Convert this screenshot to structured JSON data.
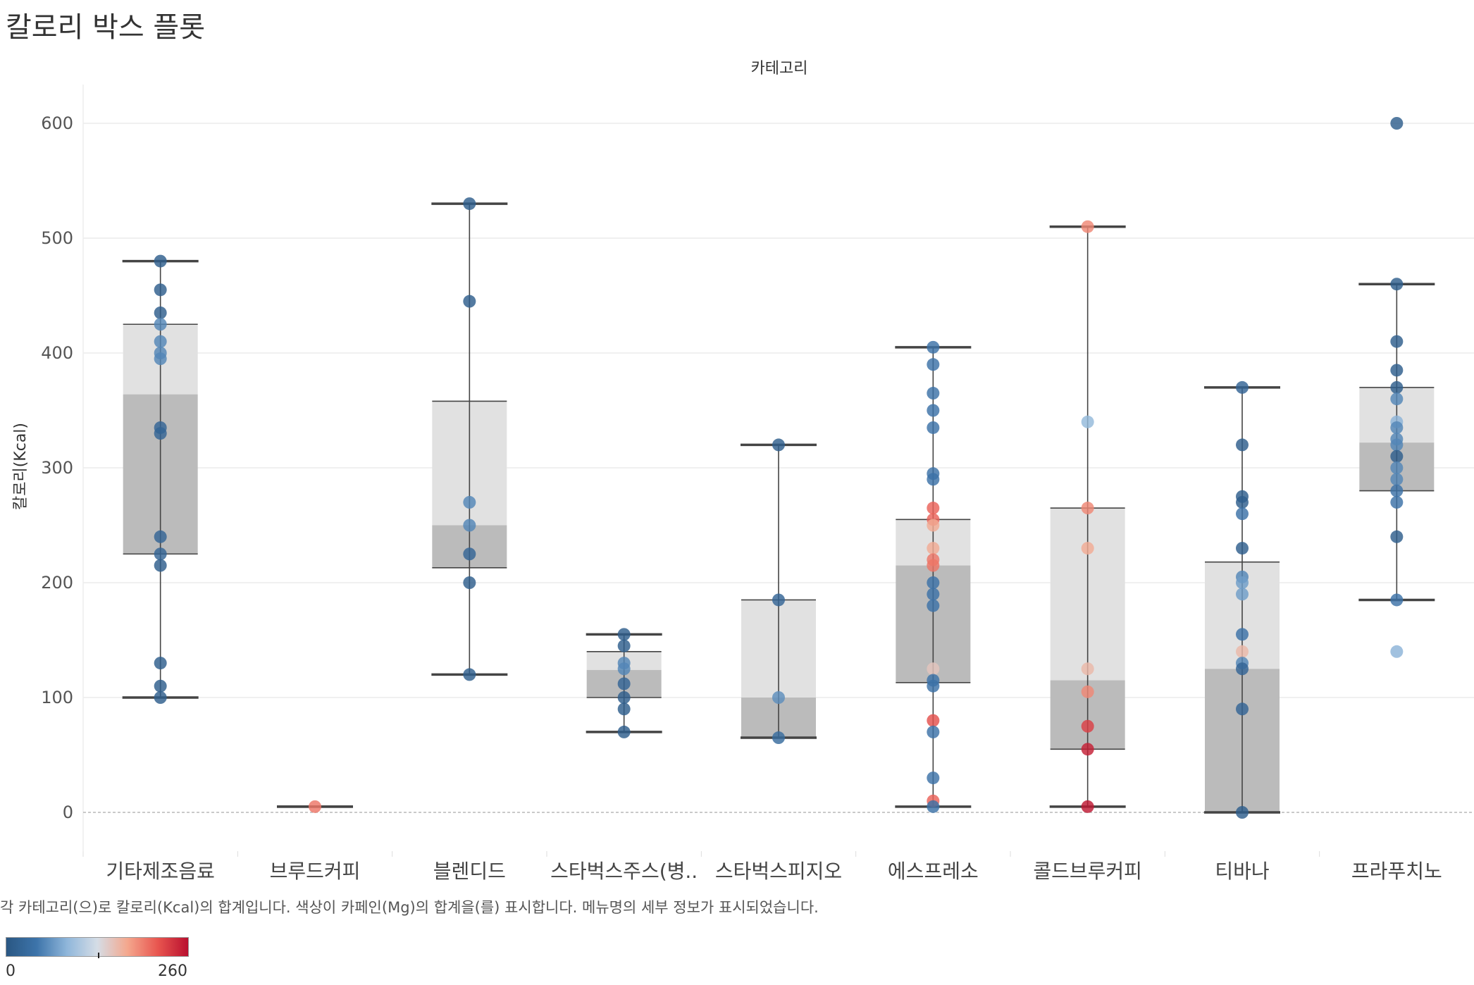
{
  "page": {
    "title": "칼로리 박스 플롯",
    "caption": "각 카테고리(으)로 칼로리(Kcal)의 합계입니다. 색상이 카페인(Mg)의 합계을(를) 표시합니다. 메뉴명의 세부 정보가 표시되었습니다."
  },
  "legend": {
    "min_label": "0",
    "max_label": "260",
    "min_value": 0,
    "max_value": 260,
    "colors": [
      "#2a5783",
      "#3d74aa",
      "#8fb6da",
      "#d5dde6",
      "#f4a78d",
      "#e8554f",
      "#b9102f"
    ]
  },
  "chart_data": {
    "type": "box-plot",
    "title": "칼로리 박스 플롯",
    "column_header": "카테고리",
    "xlabel": "카테고리",
    "ylabel": "칼로리(Kcal)",
    "ylim": [
      -35,
      640
    ],
    "yticks": [
      0,
      100,
      200,
      300,
      400,
      500,
      600
    ],
    "categories": [
      "기타제조음료",
      "브루드커피",
      "블렌디드",
      "스타벅스주스(병..",
      "스타벅스피지오",
      "에스프레소",
      "콜드브루커피",
      "티바나",
      "프라푸치노"
    ],
    "boxes": [
      {
        "category": "기타제조음료",
        "whisker_low": 100,
        "q1": 225,
        "median": 364,
        "q3": 425,
        "whisker_high": 480
      },
      {
        "category": "브루드커피",
        "whisker_low": 5,
        "q1": 5,
        "median": 5,
        "q3": 5,
        "whisker_high": 5
      },
      {
        "category": "블렌디드",
        "whisker_low": 120,
        "q1": 213,
        "median": 250,
        "q3": 358,
        "whisker_high": 530
      },
      {
        "category": "스타벅스주스(병..",
        "whisker_low": 70,
        "q1": 100,
        "median": 124,
        "q3": 140,
        "whisker_high": 155
      },
      {
        "category": "스타벅스피지오",
        "whisker_low": 65,
        "q1": 65,
        "median": 100,
        "q3": 185,
        "whisker_high": 320
      },
      {
        "category": "에스프레소",
        "whisker_low": 5,
        "q1": 113,
        "median": 215,
        "q3": 255,
        "whisker_high": 405
      },
      {
        "category": "콜드브루커피",
        "whisker_low": 5,
        "q1": 55,
        "median": 115,
        "q3": 265,
        "whisker_high": 510
      },
      {
        "category": "티바나",
        "whisker_low": 0,
        "q1": 0,
        "median": 125,
        "q3": 218,
        "whisker_high": 370
      },
      {
        "category": "프라푸치노",
        "whisker_low": 185,
        "q1": 280,
        "median": 322,
        "q3": 370,
        "whisker_high": 460
      }
    ],
    "points": [
      {
        "category": "기타제조음료",
        "kcal": [
          480,
          455,
          435,
          425,
          410,
          400,
          395,
          335,
          330,
          240,
          225,
          215,
          130,
          110,
          100
        ],
        "caffeine": [
          10,
          10,
          10,
          55,
          55,
          55,
          55,
          20,
          20,
          20,
          20,
          10,
          10,
          10,
          10
        ]
      },
      {
        "category": "브루드커피",
        "kcal": [
          5
        ],
        "caffeine": [
          200
        ]
      },
      {
        "category": "블렌디드",
        "kcal": [
          530,
          445,
          270,
          250,
          225,
          200,
          120
        ],
        "caffeine": [
          10,
          10,
          55,
          55,
          20,
          10,
          10
        ]
      },
      {
        "category": "스타벅스주스(병..",
        "kcal": [
          155,
          145,
          130,
          125,
          112,
          100,
          90,
          70
        ],
        "caffeine": [
          10,
          10,
          55,
          55,
          20,
          10,
          10,
          10
        ]
      },
      {
        "category": "스타벅스피지오",
        "kcal": [
          320,
          185,
          100,
          65
        ],
        "caffeine": [
          10,
          20,
          60,
          30
        ]
      },
      {
        "category": "에스프레소",
        "kcal": [
          405,
          390,
          365,
          350,
          335,
          295,
          290,
          265,
          255,
          250,
          230,
          220,
          215,
          200,
          190,
          180,
          125,
          115,
          110,
          80,
          70,
          30,
          10,
          5
        ],
        "caffeine": [
          40,
          40,
          40,
          40,
          40,
          40,
          40,
          210,
          210,
          170,
          170,
          200,
          200,
          40,
          40,
          40,
          150,
          40,
          40,
          220,
          40,
          40,
          210,
          40
        ]
      },
      {
        "category": "콜드브루커피",
        "kcal": [
          510,
          340,
          265,
          230,
          125,
          105,
          75,
          55,
          5
        ],
        "caffeine": [
          190,
          90,
          190,
          170,
          160,
          190,
          230,
          250,
          255
        ]
      },
      {
        "category": "티바나",
        "kcal": [
          370,
          320,
          275,
          270,
          260,
          230,
          205,
          200,
          190,
          155,
          140,
          130,
          125,
          90,
          0
        ],
        "caffeine": [
          20,
          10,
          10,
          10,
          40,
          10,
          55,
          70,
          70,
          40,
          160,
          55,
          20,
          20,
          10
        ]
      },
      {
        "category": "프라푸치노",
        "kcal": [
          600,
          460,
          410,
          385,
          370,
          360,
          340,
          335,
          325,
          320,
          310,
          300,
          290,
          280,
          270,
          240,
          185,
          140
        ],
        "caffeine": [
          10,
          10,
          10,
          10,
          10,
          55,
          85,
          55,
          55,
          55,
          10,
          55,
          55,
          40,
          40,
          10,
          40,
          85
        ]
      }
    ]
  }
}
